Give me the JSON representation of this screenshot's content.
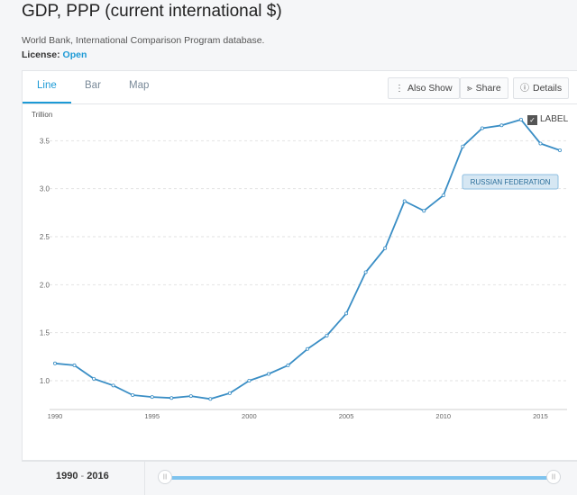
{
  "header": {
    "title": "GDP, PPP (current international $)",
    "source": "World Bank, International Comparison Program database.",
    "license_label": "License:",
    "license_value": "Open"
  },
  "tabs": [
    {
      "label": "Line",
      "active": true
    },
    {
      "label": "Bar",
      "active": false
    },
    {
      "label": "Map",
      "active": false
    }
  ],
  "toolbar": {
    "also_show": "Also Show",
    "share": "Share",
    "details": "Details"
  },
  "label_toggle": {
    "text": "LABEL",
    "checked": true
  },
  "range": {
    "start": "1990",
    "separator": "-",
    "end": "2016"
  },
  "colors": {
    "line": "#3a8ec5",
    "accent": "#1c9ad6",
    "label_bg": "#d6e7f3"
  },
  "chart_data": {
    "type": "line",
    "title": "",
    "xlabel": "",
    "ylabel": "Trillion",
    "xlim": [
      1990,
      2016
    ],
    "ylim": [
      0.7,
      3.85
    ],
    "yticks": [
      "1.0",
      "1.5",
      "2.0",
      "2.5",
      "3.0",
      "3.5"
    ],
    "xticks": [
      "1990",
      "1995",
      "2000",
      "2005",
      "2010",
      "2015"
    ],
    "grid": true,
    "series": [
      {
        "name": "RUSSIAN FEDERATION",
        "x": [
          1990,
          1991,
          1992,
          1993,
          1994,
          1995,
          1996,
          1997,
          1998,
          1999,
          2000,
          2001,
          2002,
          2003,
          2004,
          2005,
          2006,
          2007,
          2008,
          2009,
          2010,
          2011,
          2012,
          2013,
          2014,
          2015,
          2016
        ],
        "values": [
          1.18,
          1.16,
          1.02,
          0.95,
          0.85,
          0.83,
          0.82,
          0.84,
          0.81,
          0.87,
          1.0,
          1.07,
          1.16,
          1.33,
          1.47,
          1.7,
          2.13,
          2.38,
          2.87,
          2.77,
          2.93,
          3.44,
          3.63,
          3.66,
          3.72,
          3.47,
          3.4
        ]
      }
    ]
  }
}
